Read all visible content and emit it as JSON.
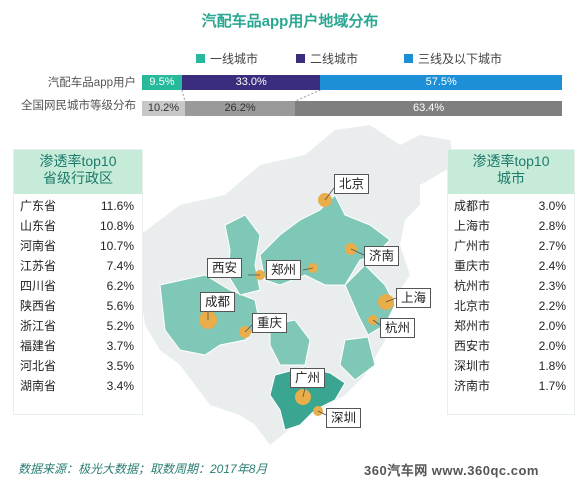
{
  "title": "汽配车品app用户地域分布",
  "colors": {
    "tier1": "#27b99b",
    "tier2": "#3a2d7e",
    "tier3": "#1c8fd6",
    "gray_light": "#c7c7c7",
    "gray_mid": "#9a9a9a",
    "gray_dark": "#7f7f7f",
    "map_green": "#7fc7b6",
    "map_bg": "#eef0f0",
    "marker": "#e9ad4a"
  },
  "chart_data": [
    {
      "type": "bar",
      "stacked": true,
      "orientation": "horizontal",
      "categories": [
        "汽配车品app用户",
        "全国网民城市等级分布"
      ],
      "series": [
        {
          "name": "一线城市",
          "values": [
            9.5,
            10.2
          ],
          "labels": [
            "9.5%",
            "10.2%"
          ]
        },
        {
          "name": "二线城市",
          "values": [
            33.0,
            26.2
          ],
          "labels": [
            "33.0%",
            "26.2%"
          ]
        },
        {
          "name": "三线及以下城市",
          "values": [
            57.5,
            63.4
          ],
          "labels": [
            "57.5%",
            "63.4%"
          ]
        }
      ],
      "legend_position": "top"
    },
    {
      "type": "table",
      "title": "渗透率top10省级行政区",
      "rows": [
        {
          "name": "广东省",
          "value": "11.6%"
        },
        {
          "name": "山东省",
          "value": "10.8%"
        },
        {
          "name": "河南省",
          "value": "10.7%"
        },
        {
          "name": "江苏省",
          "value": "7.4%"
        },
        {
          "name": "四川省",
          "value": "6.2%"
        },
        {
          "name": "陕西省",
          "value": "5.6%"
        },
        {
          "name": "浙江省",
          "value": "5.2%"
        },
        {
          "name": "福建省",
          "value": "3.7%"
        },
        {
          "name": "河北省",
          "value": "3.5%"
        },
        {
          "name": "湖南省",
          "value": "3.4%"
        }
      ]
    },
    {
      "type": "table",
      "title": "渗透率top10城市",
      "rows": [
        {
          "name": "成都市",
          "value": "3.0%"
        },
        {
          "name": "上海市",
          "value": "2.8%"
        },
        {
          "name": "广州市",
          "value": "2.7%"
        },
        {
          "name": "重庆市",
          "value": "2.4%"
        },
        {
          "name": "杭州市",
          "value": "2.3%"
        },
        {
          "name": "北京市",
          "value": "2.2%"
        },
        {
          "name": "郑州市",
          "value": "2.0%"
        },
        {
          "name": "西安市",
          "value": "2.0%"
        },
        {
          "name": "深圳市",
          "value": "1.8%"
        },
        {
          "name": "济南市",
          "value": "1.7%"
        }
      ]
    }
  ],
  "map_cities": [
    {
      "id": "beijing",
      "name": "北京"
    },
    {
      "id": "jinan",
      "name": "济南"
    },
    {
      "id": "xian",
      "name": "西安"
    },
    {
      "id": "zhengzhou",
      "name": "郑州"
    },
    {
      "id": "shanghai",
      "name": "上海"
    },
    {
      "id": "chengdu",
      "name": "成都"
    },
    {
      "id": "chongqing",
      "name": "重庆"
    },
    {
      "id": "hangzhou",
      "name": "杭州"
    },
    {
      "id": "guangzhou",
      "name": "广州"
    },
    {
      "id": "shenzhen",
      "name": "深圳"
    }
  ],
  "left_panel_title_lines": [
    "渗透率top10",
    "省级行政区"
  ],
  "right_panel_title_lines": [
    "渗透率top10",
    "城市"
  ],
  "source": "数据来源：极光大数据；取数周期：2017年8月",
  "logo": "360汽车网 www.360qc.com"
}
